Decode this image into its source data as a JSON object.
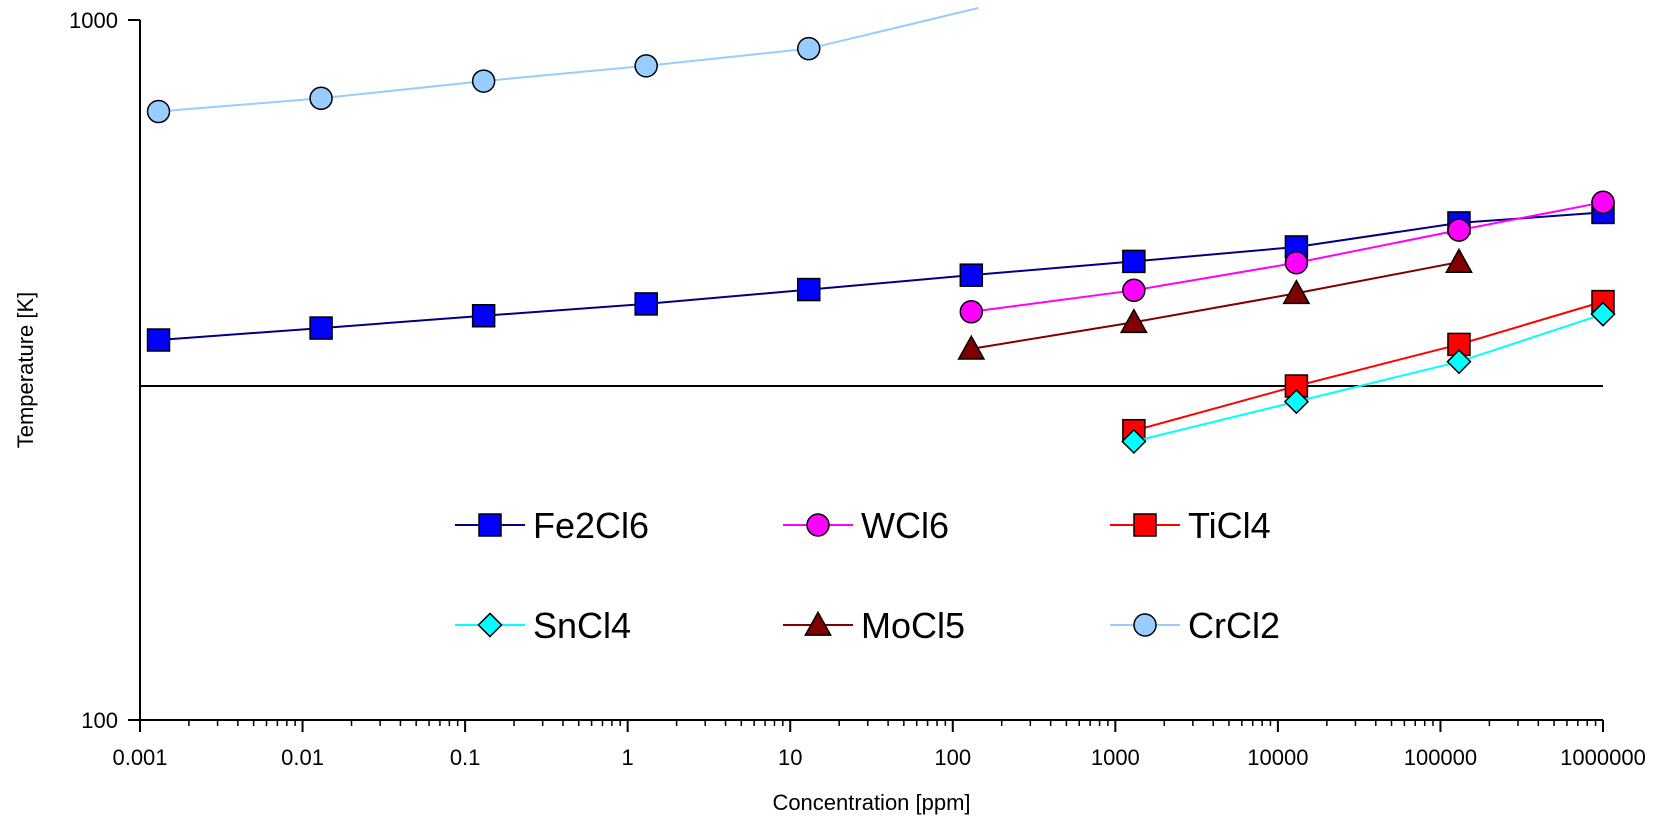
{
  "chart_data": {
    "type": "line",
    "title": "",
    "xlabel": "Concentration [ppm]",
    "ylabel": "Temperature [K]",
    "x_scale": "log",
    "y_scale": "log",
    "xlim": [
      0.001,
      1000000
    ],
    "ylim": [
      100,
      1000
    ],
    "x_ticks": [
      "0.001",
      "0.01",
      "0.1",
      "1",
      "10",
      "100",
      "1000",
      "10000",
      "100000",
      "1000000"
    ],
    "y_ticks": [
      "100",
      "1000"
    ],
    "reference_line": {
      "y": 300
    },
    "grid": false,
    "legend_position": "center",
    "series": [
      {
        "name": "Fe2Cl6",
        "color": "#0000ff",
        "line_color": "#000080",
        "marker": "square",
        "x": [
          0.0013,
          0.013,
          0.13,
          1.3,
          13,
          130,
          1300,
          13000,
          130000,
          1000000
        ],
        "y": [
          349,
          363,
          378,
          393,
          412,
          432,
          452,
          474,
          513,
          531
        ]
      },
      {
        "name": "WCl6",
        "color": "#ff00ff",
        "line_color": "#ff00ff",
        "marker": "circle",
        "x": [
          130,
          1300,
          13000,
          130000,
          1000000
        ],
        "y": [
          383,
          411,
          450,
          501,
          549
        ]
      },
      {
        "name": "TiCl4",
        "color": "#ff0000",
        "line_color": "#ff0000",
        "marker": "square",
        "x": [
          1300,
          13000,
          130000,
          1000000
        ],
        "y": [
          259,
          300,
          344,
          396
        ]
      },
      {
        "name": "SnCl4",
        "color": "#00ffff",
        "line_color": "#00ffff",
        "marker": "diamond",
        "x": [
          1300,
          13000,
          130000,
          1000000
        ],
        "y": [
          250,
          285,
          325,
          380
        ]
      },
      {
        "name": "MoCl5",
        "color": "#800000",
        "line_color": "#800000",
        "marker": "triangle",
        "x": [
          130,
          1300,
          13000,
          130000
        ],
        "y": [
          339,
          370,
          407,
          451
        ]
      },
      {
        "name": "CrCl2",
        "color": "#99ccff",
        "line_color": "#99ccff",
        "marker": "circle",
        "x": [
          0.0013,
          0.013,
          0.13,
          1.3,
          13,
          250
        ],
        "y": [
          740,
          773,
          818,
          860,
          910,
          1022
        ]
      }
    ]
  }
}
